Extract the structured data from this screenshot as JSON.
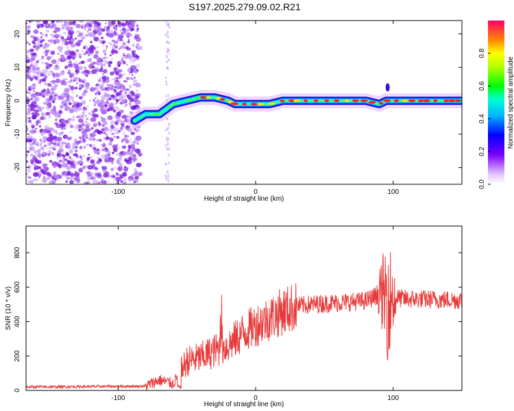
{
  "title": "S197.2025.279.09.02.R21",
  "colors": {
    "snr_line": "#e83a3a",
    "spectrum_dots": "#8a2be2",
    "axis": "#000000"
  },
  "chart_data": [
    {
      "type": "heatmap",
      "name": "frequency-spectrogram",
      "xlabel": "Height of straight line (km)",
      "ylabel": "Frequency (Hz)",
      "xlim": [
        -167,
        150
      ],
      "ylim": [
        -25,
        24
      ],
      "xticks": [
        -100,
        0,
        100
      ],
      "yticks": [
        -20,
        -10,
        0,
        10,
        20
      ],
      "colorbar": {
        "label": "Normalized spectral amplitude",
        "range": [
          0,
          1
        ],
        "ticks": [
          "0.0",
          "0.2",
          "0.4",
          "0.6",
          "0.8"
        ]
      },
      "ridge": {
        "x": [
          -88,
          -80,
          -70,
          -60,
          -50,
          -40,
          -30,
          -20,
          -15,
          -10,
          0,
          10,
          20,
          40,
          60,
          80,
          90,
          95,
          100,
          120,
          150
        ],
        "y": [
          -6,
          -4,
          -4,
          -1,
          0,
          1,
          1,
          0,
          -1,
          -1,
          -1,
          -1,
          0,
          0,
          0,
          0,
          -1,
          0,
          0,
          0,
          0
        ]
      }
    },
    {
      "type": "line",
      "name": "snr-profile",
      "xlabel": "Height of straight line (km)",
      "ylabel": "SNR (10 * v/v)",
      "xlim": [
        -167,
        150
      ],
      "ylim": [
        0,
        955
      ],
      "xticks": [
        -100,
        0,
        100
      ],
      "yticks": [
        0,
        200,
        400,
        600,
        800
      ],
      "envelope": {
        "x": [
          -167,
          -80,
          -70,
          -60,
          -50,
          -40,
          -30,
          -20,
          -10,
          0,
          10,
          20,
          30,
          40,
          60,
          80,
          90,
          100,
          110,
          120,
          150
        ],
        "y": [
          20,
          25,
          60,
          40,
          170,
          190,
          230,
          260,
          330,
          380,
          420,
          460,
          490,
          500,
          510,
          520,
          560,
          540,
          530,
          530,
          525
        ]
      }
    }
  ]
}
